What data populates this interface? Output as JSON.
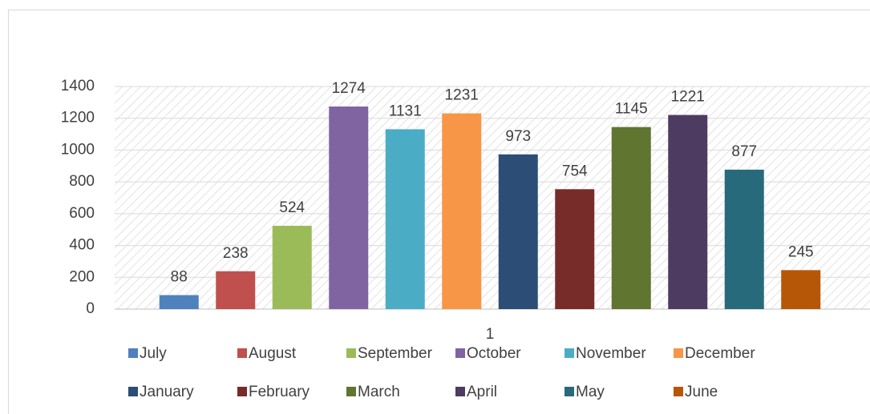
{
  "chart_data": {
    "type": "bar",
    "categories": [
      "1"
    ],
    "series": [
      {
        "name": "July",
        "color": "#4f81bd",
        "values": [
          88
        ]
      },
      {
        "name": "August",
        "color": "#c0504d",
        "values": [
          238
        ]
      },
      {
        "name": "September",
        "color": "#9bbb59",
        "values": [
          524
        ]
      },
      {
        "name": "October",
        "color": "#8064a2",
        "values": [
          1274
        ]
      },
      {
        "name": "November",
        "color": "#4bacc6",
        "values": [
          1131
        ]
      },
      {
        "name": "December",
        "color": "#f79646",
        "values": [
          1231
        ]
      },
      {
        "name": "January",
        "color": "#2c4d75",
        "values": [
          973
        ]
      },
      {
        "name": "February",
        "color": "#772c2a",
        "values": [
          754
        ]
      },
      {
        "name": "March",
        "color": "#5f7530",
        "values": [
          1145
        ]
      },
      {
        "name": "April",
        "color": "#4d3b62",
        "values": [
          1221
        ]
      },
      {
        "name": "May",
        "color": "#276a7c",
        "values": [
          877
        ]
      },
      {
        "name": "June",
        "color": "#b65708",
        "values": [
          245
        ]
      }
    ],
    "ylim": [
      0,
      1400
    ],
    "yticks": [
      0,
      200,
      400,
      600,
      800,
      1000,
      1200,
      1400
    ],
    "grid": true,
    "legend": "bottom"
  }
}
